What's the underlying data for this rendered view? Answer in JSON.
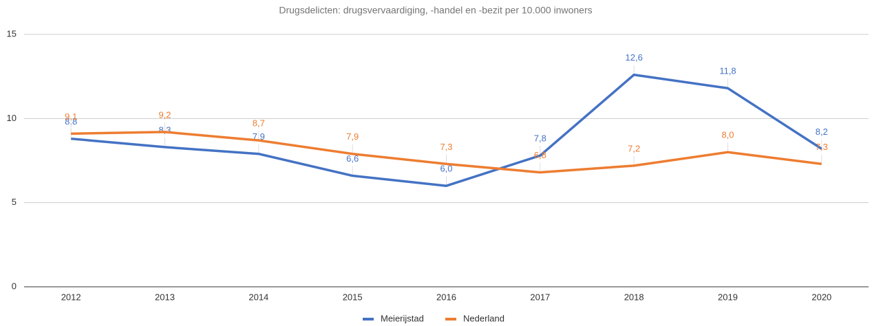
{
  "chart_data": {
    "type": "line",
    "title": "Drugsdelicten: drugsvervaardiging, -handel en -bezit per 10.000 inwoners",
    "categories": [
      "2012",
      "2013",
      "2014",
      "2015",
      "2016",
      "2017",
      "2018",
      "2019",
      "2020"
    ],
    "series": [
      {
        "name": "Meierijstad",
        "color": "#4472c4",
        "values": [
          8.8,
          8.3,
          7.9,
          6.6,
          6.0,
          7.8,
          12.6,
          11.8,
          8.2
        ],
        "value_labels": [
          "8,8",
          "8,3",
          "7,9",
          "6,6",
          "6,0",
          "7,8",
          "12,6",
          "11,8",
          "8,2"
        ]
      },
      {
        "name": "Nederland",
        "color": "#ed7d31",
        "values": [
          9.1,
          9.2,
          8.7,
          7.9,
          7.3,
          6.8,
          7.2,
          8.0,
          7.3
        ],
        "value_labels": [
          "9,1",
          "9,2",
          "8,7",
          "7,9",
          "7,3",
          "6,8",
          "7,2",
          "8,0",
          "7,3"
        ]
      }
    ],
    "ylim": [
      0,
      15
    ],
    "yticks": [
      0,
      5,
      10,
      15
    ],
    "grid": true,
    "legend": "bottom"
  }
}
